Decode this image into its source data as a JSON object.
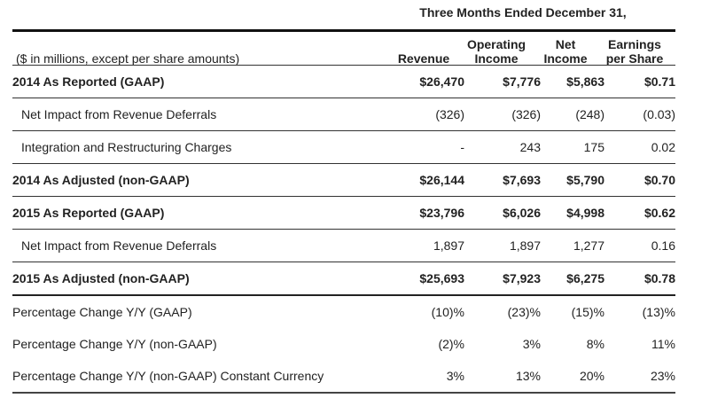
{
  "header": {
    "period": "Three Months Ended December 31,",
    "units_note": "($ in millions, except per share amounts)",
    "columns": [
      {
        "line1": "",
        "line2": "Revenue"
      },
      {
        "line1": "Operating",
        "line2": "Income"
      },
      {
        "line1": "Net",
        "line2": "Income"
      },
      {
        "line1": "Earnings",
        "line2": "per Share"
      }
    ]
  },
  "rows": [
    {
      "label": "2014 As Reported (GAAP)",
      "values": [
        "$26,470",
        "$7,776",
        "$5,863",
        "$0.71"
      ]
    },
    {
      "label": "Net Impact from Revenue Deferrals",
      "values": [
        "(326)",
        "(326)",
        "(248)",
        "(0.03)"
      ]
    },
    {
      "label": "Integration and Restructuring Charges",
      "values": [
        "-",
        "243",
        "175",
        "0.02"
      ]
    },
    {
      "label": "2014 As Adjusted (non-GAAP)",
      "values": [
        "$26,144",
        "$7,693",
        "$5,790",
        "$0.70"
      ]
    },
    {
      "label": "2015 As Reported (GAAP)",
      "values": [
        "$23,796",
        "$6,026",
        "$4,998",
        "$0.62"
      ]
    },
    {
      "label": "Net Impact from Revenue Deferrals",
      "values": [
        "1,897",
        "1,897",
        "1,277",
        "0.16"
      ]
    },
    {
      "label": "2015 As Adjusted (non-GAAP)",
      "values": [
        "$25,693",
        "$7,923",
        "$6,275",
        "$0.78"
      ]
    },
    {
      "label": "Percentage Change Y/Y (GAAP)",
      "values": [
        "(10)%",
        "(23)%",
        "(15)%",
        "(13)%"
      ]
    },
    {
      "label": "Percentage Change Y/Y (non-GAAP)",
      "values": [
        "(2)%",
        "3%",
        "8%",
        "11%"
      ]
    },
    {
      "label": "Percentage Change Y/Y (non-GAAP) Constant Currency",
      "values": [
        "3%",
        "13%",
        "20%",
        "23%"
      ]
    }
  ]
}
